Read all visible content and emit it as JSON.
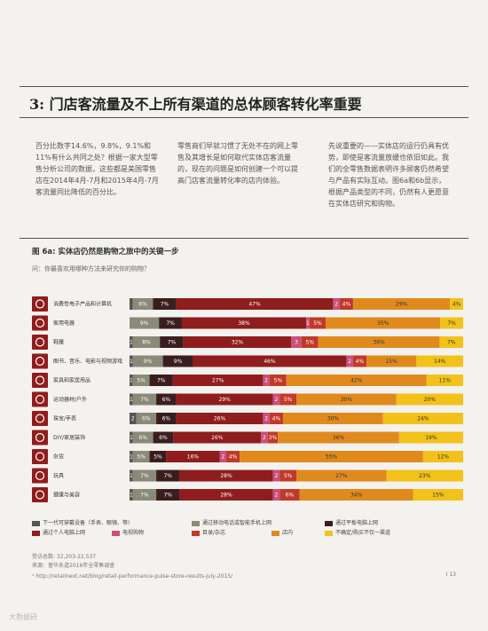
{
  "section": {
    "title": "3: 门店客流量及不上所有渠道的总体顾客转化率重要"
  },
  "body": {
    "col1": "百分比数字14.6%，9.8%，9.1%和11%有什么共同之处？根据一家大型零售分析公司的数据，这些都是美国零售店在2014年4月-7月和2015年4月-7月客流量同比降低的百分比。",
    "col2": "零售商们早就习惯了无处不在的网上零售及其增长是如何取代实体店客流量的，现在的问题是如何创建一个可以提高门店客流量转化率的店内体验。",
    "col3": "先说重要的——实体店的运行仍具有优势，即使是客流量放缓也依旧如此。我们的全零售数据表明许多顾客仍然希望与产品有实际互动。图6a和6b显示，根据产品类型的不同，仍然有人更愿意在实体店研究和购物。"
  },
  "figure": {
    "title": "图 6a: 实体店仍然是购物之旅中的关键一步",
    "question": "问：你最喜欢用哪种方法来研究你的购物？"
  },
  "legend": [
    {
      "label": "下一代可穿戴设备（手表、眼镜、等）",
      "color": "#555555"
    },
    {
      "label": "通过移动电话或智能手机上网",
      "color": "#8a8a78"
    },
    {
      "label": "通过平板电脑上网",
      "color": "#3a1e1e"
    },
    {
      "label": "通过个人电脑上网",
      "color": "#8f1d1d"
    },
    {
      "label": "电视购物",
      "color": "#c9507a"
    },
    {
      "label": "目录/杂志",
      "color": "#c0392b"
    },
    {
      "label": "店内",
      "color": "#e08a1e"
    },
    {
      "label": "不确定/购买不仅一渠道",
      "color": "#f2c21a"
    }
  ],
  "footer": {
    "sample": "受访总数: 32,203-22,537",
    "source": "来源：普华永道2016年全零售调查",
    "url": "¹ http://retailnext.net/blog/retail-performance-pulse-store-results-july-2015/",
    "pageno": "I 13"
  },
  "watermark": "大数据研",
  "chart_data": {
    "type": "bar",
    "orientation": "horizontal",
    "stacked": true,
    "title": "图 6a: 实体店仍然是购物之旅中的关键一步",
    "xlim": [
      0,
      100
    ],
    "unit": "%",
    "series_names": [
      "下一代可穿戴设备（手表、眼镜、等）",
      "通过移动电话或智能手机上网",
      "通过平板电脑上网",
      "通过个人电脑上网",
      "电视购物",
      "目录/杂志",
      "店内",
      "不确定/购买不仅一渠道"
    ],
    "colors": [
      "#555555",
      "#8a8a78",
      "#3a1e1e",
      "#8f1d1d",
      "#c9507a",
      "#c0392b",
      "#e08a1e",
      "#f2c21a"
    ],
    "categories": [
      "消费性电子产品和计算机",
      "家用电器",
      "鞋履",
      "图书、音乐、电影与视频游戏",
      "家具和家居用品",
      "运动器材/户外",
      "珠宝/手表",
      "DIY/家居装饰",
      "杂货",
      "玩具",
      "健康与美容"
    ],
    "rows": [
      [
        1,
        6,
        7,
        47,
        2,
        4,
        29,
        4
      ],
      [
        0,
        9,
        7,
        38,
        1,
        5,
        35,
        7
      ],
      [
        1,
        8,
        7,
        32,
        3,
        5,
        36,
        7
      ],
      [
        1,
        9,
        9,
        46,
        2,
        4,
        15,
        14
      ],
      [
        1,
        5,
        7,
        27,
        2,
        5,
        42,
        11
      ],
      [
        1,
        7,
        6,
        29,
        2,
        5,
        30,
        20
      ],
      [
        2,
        6,
        6,
        26,
        2,
        4,
        30,
        24
      ],
      [
        1,
        6,
        6,
        26,
        2,
        3,
        36,
        19
      ],
      [
        1,
        5,
        5,
        16,
        2,
        4,
        55,
        12
      ],
      [
        1,
        7,
        7,
        28,
        2,
        5,
        27,
        23
      ],
      [
        1,
        7,
        7,
        28,
        2,
        6,
        34,
        15
      ]
    ],
    "segment_labels": [
      [
        "",
        "6%",
        "7%",
        "47%",
        "2",
        "4%",
        "29%",
        "4%"
      ],
      [
        "0",
        "9%",
        "7%",
        "38%",
        "1",
        "5%",
        "35%",
        "7%"
      ],
      [
        "1",
        "8%",
        "7%",
        "32%",
        "3",
        "5%",
        "36%",
        "7%"
      ],
      [
        "1",
        "9%",
        "9%",
        "46%",
        "2",
        "4%",
        "15%",
        "14%"
      ],
      [
        "1",
        "5%",
        "7%",
        "27%",
        "2",
        "5%",
        "42%",
        "11%"
      ],
      [
        "1",
        "7%",
        "6%",
        "29%",
        "2",
        "5%",
        "30%",
        "20%"
      ],
      [
        "2",
        "6%",
        "6%",
        "26%",
        "2",
        "4%",
        "30%",
        "24%"
      ],
      [
        "1",
        "6%",
        "6%",
        "26%",
        "2",
        "3%",
        "36%",
        "19%"
      ],
      [
        "1",
        "5%",
        "5%",
        "16%",
        "2",
        "4%",
        "55%",
        "12%"
      ],
      [
        "1",
        "7%",
        "7%",
        "28%",
        "2",
        "5%",
        "27%",
        "23%"
      ],
      [
        "1",
        "7%",
        "7%",
        "28%",
        "2",
        "6%",
        "34%",
        "15%"
      ]
    ]
  }
}
